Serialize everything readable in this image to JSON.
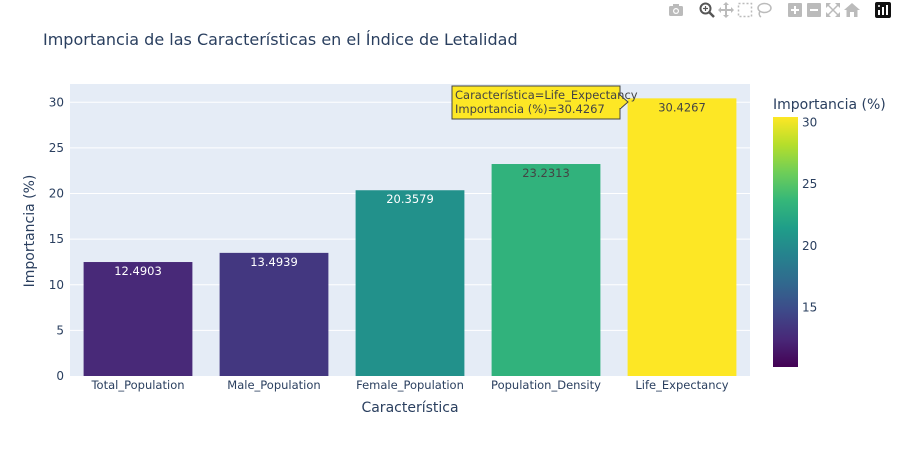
{
  "title": "Importancia de las Características en el Índice de Letalidad",
  "modebar": {
    "buttons": [
      {
        "name": "camera-icon",
        "group": 1
      },
      {
        "name": "zoom-icon",
        "group": 2
      },
      {
        "name": "pan-icon",
        "group": 2
      },
      {
        "name": "box-select-icon",
        "group": 2
      },
      {
        "name": "lasso-select-icon",
        "group": 2
      },
      {
        "name": "zoom-in-icon",
        "group": 3
      },
      {
        "name": "zoom-out-icon",
        "group": 3
      },
      {
        "name": "autoscale-icon",
        "group": 3
      },
      {
        "name": "home-icon",
        "group": 3
      },
      {
        "name": "plotly-logo-icon",
        "group": 4
      }
    ]
  },
  "tooltip": {
    "line1": "Característica=Life_Expectancy",
    "line2": "Importancia (%)=30.4267"
  },
  "chart_data": {
    "type": "bar",
    "title": "Importancia de las Características en el Índice de Letalidad",
    "xlabel": "Característica",
    "ylabel": "Importancia (%)",
    "categories": [
      "Total_Population",
      "Male_Population",
      "Female_Population",
      "Population_Density",
      "Life_Expectancy"
    ],
    "values": [
      12.4903,
      13.4939,
      20.3579,
      23.2313,
      30.4267
    ],
    "value_labels": [
      "12.4903",
      "13.4939",
      "20.3579",
      "23.2313",
      "30.4267"
    ],
    "ylim": [
      0,
      32
    ],
    "yticks": [
      0,
      5,
      10,
      15,
      20,
      25,
      30
    ],
    "grid": true,
    "colorscale": "Viridis",
    "colorbar": {
      "title": "Importancia (%)",
      "range": [
        10.2,
        30.4267
      ],
      "ticks": [
        15,
        20,
        25,
        30
      ]
    },
    "colors": {
      "plot_bg": "#e5ecf6",
      "grid": "#ffffff",
      "text": "#2a3f5f",
      "tooltip_bg": "#fde725"
    }
  }
}
